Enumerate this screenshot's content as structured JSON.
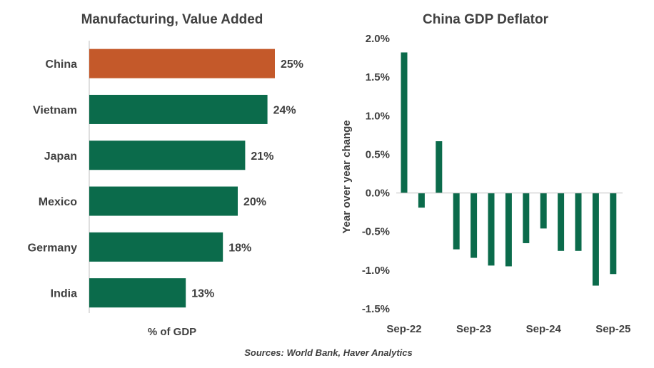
{
  "chart_data": [
    {
      "type": "bar",
      "orientation": "horizontal",
      "title": "Manufacturing, Value Added",
      "xlabel": "% of GDP",
      "ylabel": "",
      "categories": [
        "China",
        "Vietnam",
        "Japan",
        "Mexico",
        "Germany",
        "India"
      ],
      "values": [
        25,
        24,
        21,
        20,
        18,
        13
      ],
      "value_labels": [
        "25%",
        "24%",
        "21%",
        "20%",
        "18%",
        "13%"
      ],
      "highlight": "China",
      "colors": {
        "default": "#0b6b4b",
        "highlight": "#c4592a"
      },
      "xlim": [
        0,
        26
      ],
      "grid": false
    },
    {
      "type": "bar",
      "title": "China GDP Deflator",
      "xlabel": "",
      "ylabel": "Year over year change",
      "x": [
        "Sep-22",
        "Dec-22",
        "Mar-23",
        "Jun-23",
        "Sep-23",
        "Dec-23",
        "Mar-24",
        "Jun-24",
        "Sep-24",
        "Dec-24",
        "Mar-25",
        "Jun-25",
        "Sep-25"
      ],
      "x_tick_labels": [
        "Sep-22",
        "Sep-23",
        "Sep-24",
        "Sep-25"
      ],
      "x_tick_indices": [
        0,
        4,
        8,
        12
      ],
      "values": [
        1.82,
        -0.19,
        0.67,
        -0.73,
        -0.84,
        -0.94,
        -0.95,
        -0.65,
        -0.46,
        -0.75,
        -0.75,
        -1.2,
        -1.05
      ],
      "ylim": [
        -1.5,
        2.0
      ],
      "y_ticks": [
        2.0,
        1.5,
        1.0,
        0.5,
        0.0,
        -0.5,
        -1.0,
        -1.5
      ],
      "y_tick_labels": [
        "2.0%",
        "1.5%",
        "1.0%",
        "0.5%",
        "0.0%",
        "-0.5%",
        "-1.0%",
        "-1.5%"
      ],
      "color": "#0b6b4b",
      "grid": false
    }
  ],
  "footer": {
    "source": "Sources: World Bank, Haver Analytics"
  }
}
